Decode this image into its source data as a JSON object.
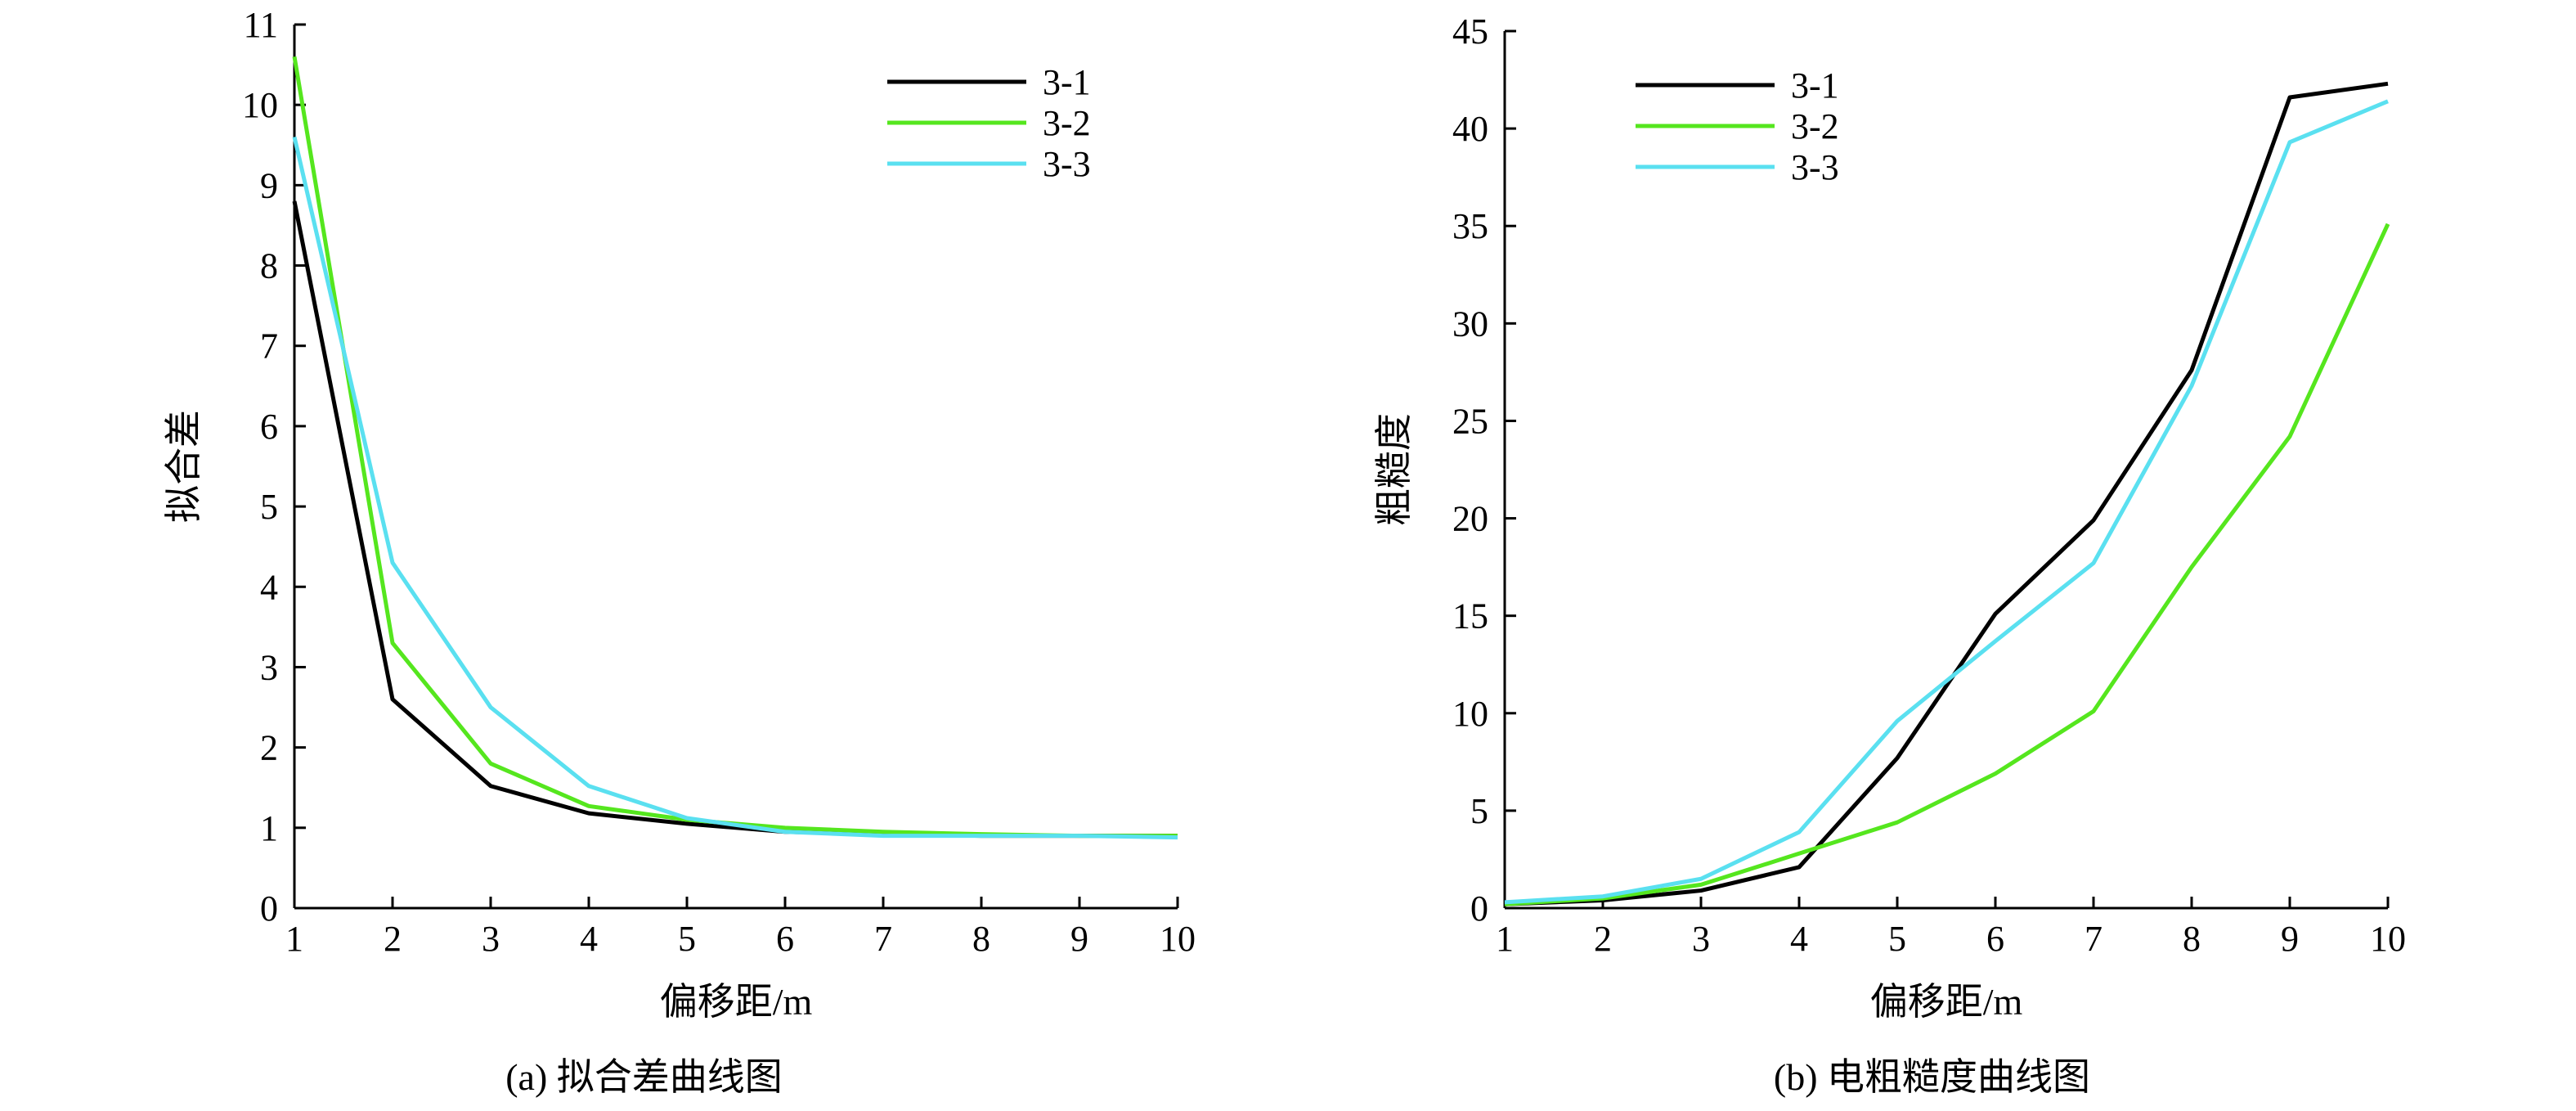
{
  "chart_data": [
    {
      "type": "line",
      "caption": "(a) 拟合差曲线图",
      "xlabel": "偏移距/m",
      "ylabel": "拟合差",
      "x": [
        1,
        2,
        3,
        4,
        5,
        6,
        7,
        8,
        9,
        10
      ],
      "xlim": [
        1,
        10
      ],
      "ylim": [
        0,
        11
      ],
      "yticks": [
        0,
        1,
        2,
        3,
        4,
        5,
        6,
        7,
        8,
        9,
        10,
        11
      ],
      "grid": false,
      "legend_position": "top-right",
      "series": [
        {
          "name": "3-1",
          "color": "#000000",
          "values": [
            8.8,
            2.6,
            1.52,
            1.18,
            1.05,
            0.95,
            0.92,
            0.9,
            0.9,
            0.9
          ]
        },
        {
          "name": "3-2",
          "color": "#55e61e",
          "values": [
            10.6,
            3.3,
            1.8,
            1.27,
            1.1,
            1.0,
            0.95,
            0.92,
            0.9,
            0.9
          ]
        },
        {
          "name": "3-3",
          "color": "#5ae0f0",
          "values": [
            9.6,
            4.3,
            2.5,
            1.52,
            1.12,
            0.95,
            0.9,
            0.9,
            0.9,
            0.88
          ]
        }
      ]
    },
    {
      "type": "line",
      "caption": "(b) 电粗糙度曲线图",
      "xlabel": "偏移距/m",
      "ylabel": "粗糙度",
      "x": [
        1,
        2,
        3,
        4,
        5,
        6,
        7,
        8,
        9,
        10
      ],
      "xlim": [
        1,
        10
      ],
      "ylim": [
        0,
        45
      ],
      "yticks": [
        0,
        5,
        10,
        15,
        20,
        25,
        30,
        35,
        40,
        45
      ],
      "grid": false,
      "legend_position": "top-left",
      "series": [
        {
          "name": "3-1",
          "color": "#000000",
          "values": [
            0.2,
            0.4,
            0.9,
            2.1,
            7.7,
            15.1,
            19.9,
            27.6,
            41.6,
            42.3
          ]
        },
        {
          "name": "3-2",
          "color": "#55e61e",
          "values": [
            0.2,
            0.5,
            1.2,
            2.8,
            4.4,
            6.9,
            10.1,
            17.5,
            24.2,
            35.1
          ]
        },
        {
          "name": "3-3",
          "color": "#5ae0f0",
          "values": [
            0.3,
            0.6,
            1.5,
            3.9,
            9.6,
            13.7,
            17.7,
            26.8,
            39.3,
            41.4
          ]
        }
      ]
    }
  ]
}
